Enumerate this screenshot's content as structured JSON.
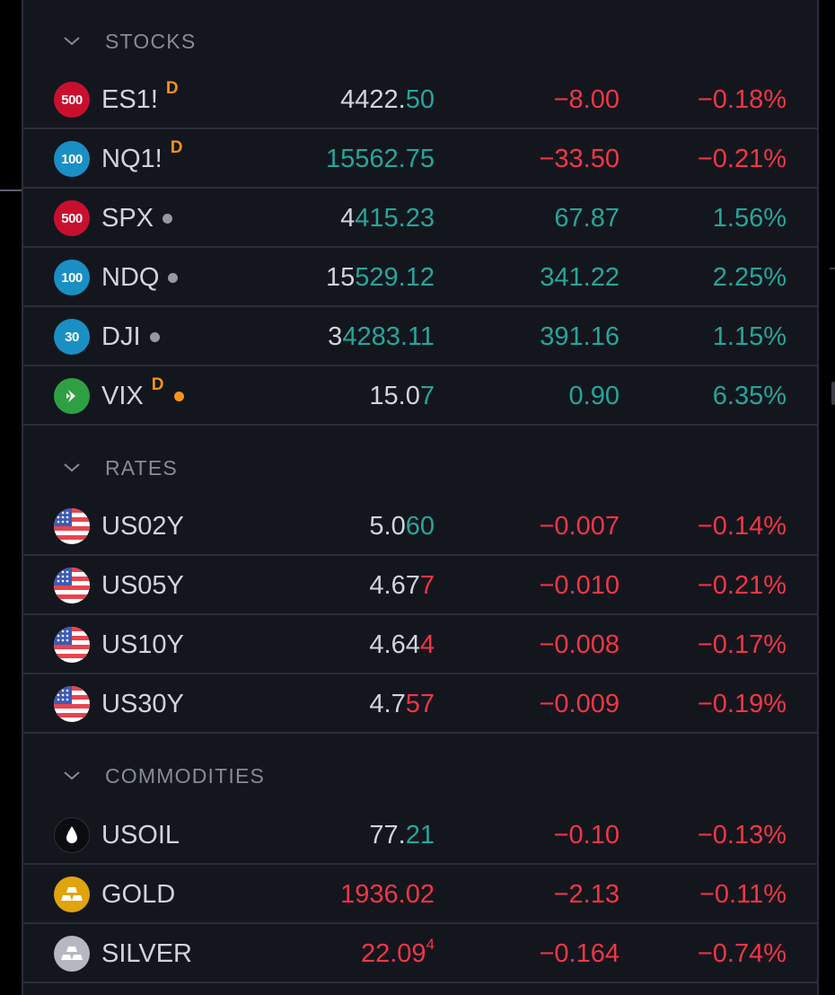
{
  "sections": [
    {
      "title": "STOCKS",
      "rows": [
        {
          "logo": "500",
          "symbol": "ES1!",
          "badge": "D",
          "dot": "",
          "price_a": "4422.",
          "price_b": "50",
          "price_b_color": "g",
          "chg": "−8.00",
          "chgp": "−0.18%",
          "dir": "r"
        },
        {
          "logo": "100",
          "symbol": "NQ1!",
          "badge": "D",
          "dot": "",
          "price_a": "",
          "price_b": "15562.75",
          "price_b_color": "g",
          "chg": "−33.50",
          "chgp": "−0.21%",
          "dir": "r"
        },
        {
          "logo": "500",
          "symbol": "SPX",
          "badge": "",
          "dot": "grey",
          "price_a": "4",
          "price_b": "415.23",
          "price_b_color": "g",
          "chg": "67.87",
          "chgp": "1.56%",
          "dir": "g"
        },
        {
          "logo": "100",
          "symbol": "NDQ",
          "badge": "",
          "dot": "grey",
          "price_a": "15",
          "price_b": "529.12",
          "price_b_color": "g",
          "chg": "341.22",
          "chgp": "2.25%",
          "dir": "g"
        },
        {
          "logo": "30",
          "symbol": "DJI",
          "badge": "",
          "dot": "grey",
          "price_a": "3",
          "price_b": "4283.11",
          "price_b_color": "g",
          "chg": "391.16",
          "chgp": "1.15%",
          "dir": "g"
        },
        {
          "logo": "",
          "symbol": "VIX",
          "badge": "D",
          "dot": "orange",
          "price_a": "15.0",
          "price_b": "7",
          "price_b_color": "g",
          "chg": "0.90",
          "chgp": "6.35%",
          "dir": "g"
        }
      ]
    },
    {
      "title": "RATES",
      "rows": [
        {
          "symbol": "US02Y",
          "price_a": "5.0",
          "price_b": "60",
          "price_b_color": "g",
          "chg": "−0.007",
          "chgp": "−0.14%",
          "dir": "r"
        },
        {
          "symbol": "US05Y",
          "price_a": "4.67",
          "price_b": "7",
          "price_b_color": "r",
          "chg": "−0.010",
          "chgp": "−0.21%",
          "dir": "r"
        },
        {
          "symbol": "US10Y",
          "price_a": "4.64",
          "price_b": "4",
          "price_b_color": "r",
          "chg": "−0.008",
          "chgp": "−0.17%",
          "dir": "r"
        },
        {
          "symbol": "US30Y",
          "price_a": "4.7",
          "price_b": "57",
          "price_b_color": "r",
          "chg": "−0.009",
          "chgp": "−0.19%",
          "dir": "r"
        }
      ]
    },
    {
      "title": "COMMODITIES",
      "rows": [
        {
          "symbol": "USOIL",
          "price_a": "77.",
          "price_b": "21",
          "price_b_color": "g",
          "chg": "−0.10",
          "chgp": "−0.13%",
          "dir": "r"
        },
        {
          "symbol": "GOLD",
          "price_a": "",
          "price_b": "1936.02",
          "price_b_color": "r",
          "chg": "−2.13",
          "chgp": "−0.11%",
          "dir": "r"
        },
        {
          "symbol": "SILVER",
          "price_a": "",
          "price_b": "22.09",
          "price_sup": "4",
          "price_b_color": "r",
          "chg": "−0.164",
          "chgp": "−0.74%",
          "dir": "r"
        }
      ]
    }
  ],
  "colors": {
    "up": "#26a69a",
    "down": "#f23645",
    "accent": "#f7931a",
    "bg": "#14161e",
    "border": "#2a2e39"
  }
}
